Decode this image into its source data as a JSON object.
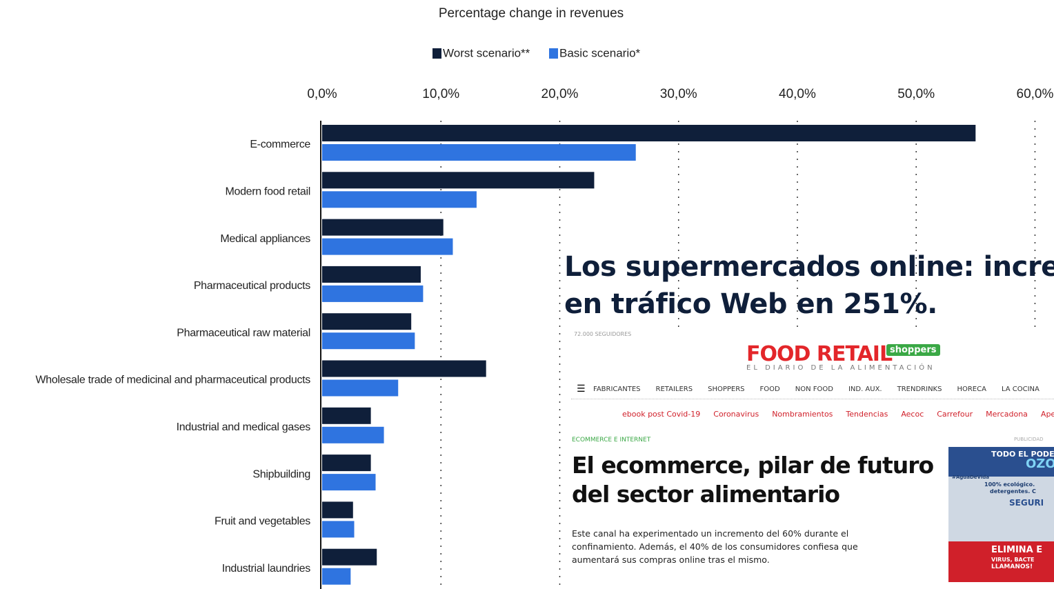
{
  "chart_data": {
    "type": "bar",
    "orientation": "horizontal",
    "title": "Percentage change in revenues",
    "categories": [
      "E-commerce",
      "Modern food retail",
      "Medical appliances",
      "Pharmaceutical products",
      "Pharmaceutical raw material",
      "Wholesale trade of medicinal and pharmaceutical products",
      "Industrial and medical gases",
      "Shipbuilding",
      "Fruit and vegetables",
      "Industrial laundries"
    ],
    "series": [
      {
        "name": "Worst scenario**",
        "color": "#0f1f3a",
        "values": [
          55.0,
          22.9,
          10.2,
          8.3,
          7.5,
          13.8,
          4.1,
          4.1,
          2.6,
          4.6
        ]
      },
      {
        "name": "Basic scenario*",
        "color": "#2f74e0",
        "values": [
          26.4,
          13.0,
          11.0,
          8.5,
          7.8,
          6.4,
          5.2,
          4.5,
          2.7,
          2.4
        ]
      }
    ],
    "xlim": [
      0,
      61.6
    ],
    "xticks": [
      {
        "value": 0,
        "label": "0,0%"
      },
      {
        "value": 10,
        "label": "10,0%"
      },
      {
        "value": 20,
        "label": "20,0%"
      },
      {
        "value": 30,
        "label": "30,0%"
      },
      {
        "value": 40,
        "label": "40,0%"
      },
      {
        "value": 50,
        "label": "50,0%"
      },
      {
        "value": 60,
        "label": "60,0%"
      }
    ],
    "grid": true
  },
  "overlay": {
    "headline": [
      "Los supermercados online: increme",
      "en tráfico Web en  251%."
    ],
    "article": {
      "followers": "72.000 SEGUIDORES",
      "logo": "FOOD RETAIL",
      "logo_badge": "shoppers",
      "tagline": "EL DIARIO DE LA ALIMENTACIÓN",
      "nav": [
        "FABRICANTES",
        "RETAILERS",
        "SHOPPERS",
        "FOOD",
        "NON FOOD",
        "IND. AUX.",
        "TRENDRINKS",
        "HORECA",
        "LA COCINA"
      ],
      "tags": [
        "ebook post Covid-19",
        "Coronavirus",
        "Nombramientos",
        "Tendencias",
        "Aecoc",
        "Carrefour",
        "Mercadona",
        "Apertu"
      ],
      "section": "ECOMMERCE E INTERNET",
      "title": [
        "El ecommerce, pilar de futuro",
        "del sector alimentario"
      ],
      "body": [
        "Este canal ha experimentado un incremento del 60% durante el",
        "confinamiento. Además, el 40% de los consumidores confiesa que",
        "aumentará sus compras online tras el mismo."
      ],
      "ad_label": "PUBLICIDAD",
      "ad": [
        "TODO EL PODE",
        "OZO",
        "#AguaDeVida",
        "100% ecológico.",
        "detergentes. C",
        "SEGURI",
        "ELIMINA E",
        "VIRUS, BACTE",
        "LLAMANOS!"
      ]
    }
  }
}
